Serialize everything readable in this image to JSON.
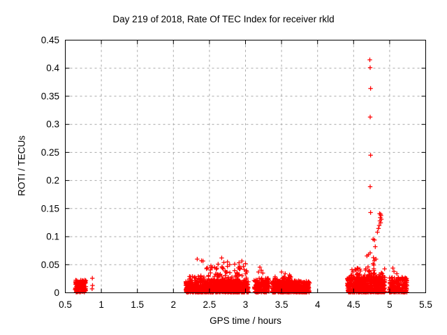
{
  "figure": {
    "background": "#ffffff"
  },
  "chart_data": {
    "type": "scatter",
    "title": "Day 219 of 2018, Rate Of TEC Index for receiver rkld",
    "xlabel": "GPS time / hours",
    "ylabel": "ROTI / TECUs",
    "xlim": [
      0.5,
      5.5
    ],
    "ylim": [
      0,
      0.45
    ],
    "xticks": {
      "values": [
        0.5,
        1,
        1.5,
        2,
        2.5,
        3,
        3.5,
        4,
        4.5,
        5,
        5.5
      ],
      "labels": [
        "0.5",
        "1",
        "1.5",
        "2",
        "2.5",
        "3",
        "3.5",
        "4",
        "4.5",
        "5",
        "5.5"
      ]
    },
    "yticks": {
      "values": [
        0,
        0.05,
        0.1,
        0.15,
        0.2,
        0.25,
        0.3,
        0.35,
        0.4,
        0.45
      ],
      "labels": [
        "0",
        "0.05",
        "0.1",
        "0.15",
        "0.2",
        "0.25",
        "0.3",
        "0.35",
        "0.4",
        "0.45"
      ]
    },
    "grid": true,
    "legend": "none",
    "marker": {
      "shape": "plus",
      "color": "#ff0000",
      "size": 7,
      "stroke_width": 1.25
    },
    "colors": {
      "border": "#000000",
      "grid": "#a8a8a8",
      "text": "#000000",
      "marker": "#ff0000"
    },
    "seed": 20180219,
    "series_name": "ROTI",
    "clusters": [
      {
        "name": "cluster-0.7h-base",
        "x": [
          0.635,
          0.785
        ],
        "y": [
          0.001,
          0.023
        ],
        "n": 130,
        "bias": 1.2
      },
      {
        "name": "cluster-2.2-3.0h-base",
        "x": [
          2.17,
          3.04
        ],
        "y": [
          0.001,
          0.022
        ],
        "n": 850,
        "bias": 1.6
      },
      {
        "name": "cluster-2.2-3.0h-mid",
        "x": [
          2.2,
          2.45
        ],
        "y": [
          0.018,
          0.032
        ],
        "n": 30,
        "bias": 1.3
      },
      {
        "name": "cluster-2.5-3.0h-top",
        "x": [
          2.45,
          3.04
        ],
        "y": [
          0.02,
          0.048
        ],
        "n": 90,
        "bias": 1.6
      },
      {
        "name": "cluster-3.2h-base",
        "x": [
          3.115,
          3.33
        ],
        "y": [
          0.001,
          0.026
        ],
        "n": 170,
        "bias": 1.5
      },
      {
        "name": "cluster-3.4-3.9h-base",
        "x": [
          3.375,
          3.89
        ],
        "y": [
          0.001,
          0.022
        ],
        "n": 520,
        "bias": 1.6
      },
      {
        "name": "cluster-3.4-3.65h-top",
        "x": [
          3.4,
          3.65
        ],
        "y": [
          0.018,
          0.032
        ],
        "n": 40,
        "bias": 1.4
      },
      {
        "name": "cluster-4.4-4.9h-base",
        "x": [
          4.41,
          4.935
        ],
        "y": [
          0.001,
          0.028
        ],
        "n": 560,
        "bias": 1.5
      },
      {
        "name": "cluster-4.4-4.9h-top",
        "x": [
          4.45,
          4.935
        ],
        "y": [
          0.022,
          0.043
        ],
        "n": 80,
        "bias": 1.5
      },
      {
        "name": "cluster-5.0-5.2h-base",
        "x": [
          4.995,
          5.24
        ],
        "y": [
          0.001,
          0.028
        ],
        "n": 190,
        "bias": 1.5
      }
    ],
    "points": [
      [
        0.875,
        0.026
      ],
      [
        0.878,
        0.013
      ],
      [
        0.872,
        0.007
      ],
      [
        2.33,
        0.06
      ],
      [
        2.39,
        0.057
      ],
      [
        2.41,
        0.0565
      ],
      [
        2.52,
        0.048
      ],
      [
        2.62,
        0.051
      ],
      [
        2.67,
        0.062
      ],
      [
        2.7,
        0.054
      ],
      [
        2.75,
        0.055
      ],
      [
        2.78,
        0.05
      ],
      [
        2.85,
        0.051
      ],
      [
        2.91,
        0.0535
      ],
      [
        2.95,
        0.0565
      ],
      [
        3.0,
        0.052
      ],
      [
        3.2,
        0.0455
      ],
      [
        3.22,
        0.04
      ],
      [
        3.18,
        0.037
      ],
      [
        3.24,
        0.035
      ],
      [
        3.5,
        0.037
      ],
      [
        3.55,
        0.034
      ],
      [
        4.49,
        0.037
      ],
      [
        4.55,
        0.044
      ],
      [
        4.7,
        0.046
      ],
      [
        4.725,
        0.415
      ],
      [
        4.73,
        0.401
      ],
      [
        4.735,
        0.364
      ],
      [
        4.73,
        0.313
      ],
      [
        4.735,
        0.245
      ],
      [
        4.73,
        0.189
      ],
      [
        4.735,
        0.143
      ],
      [
        4.86,
        0.141
      ],
      [
        4.875,
        0.14
      ],
      [
        4.88,
        0.1375
      ],
      [
        4.87,
        0.134
      ],
      [
        4.885,
        0.131
      ],
      [
        4.865,
        0.128
      ],
      [
        4.875,
        0.1245
      ],
      [
        4.855,
        0.12
      ],
      [
        4.845,
        0.1145
      ],
      [
        4.83,
        0.108
      ],
      [
        4.77,
        0.0955
      ],
      [
        4.79,
        0.094
      ],
      [
        4.8,
        0.082
      ],
      [
        4.73,
        0.071
      ],
      [
        4.705,
        0.068
      ],
      [
        4.685,
        0.0655
      ],
      [
        4.775,
        0.0625
      ],
      [
        4.81,
        0.06
      ],
      [
        4.79,
        0.0575
      ],
      [
        4.77,
        0.052
      ],
      [
        4.78,
        0.0495
      ],
      [
        5.045,
        0.044
      ],
      [
        5.06,
        0.038
      ],
      [
        5.1,
        0.034
      ]
    ]
  }
}
